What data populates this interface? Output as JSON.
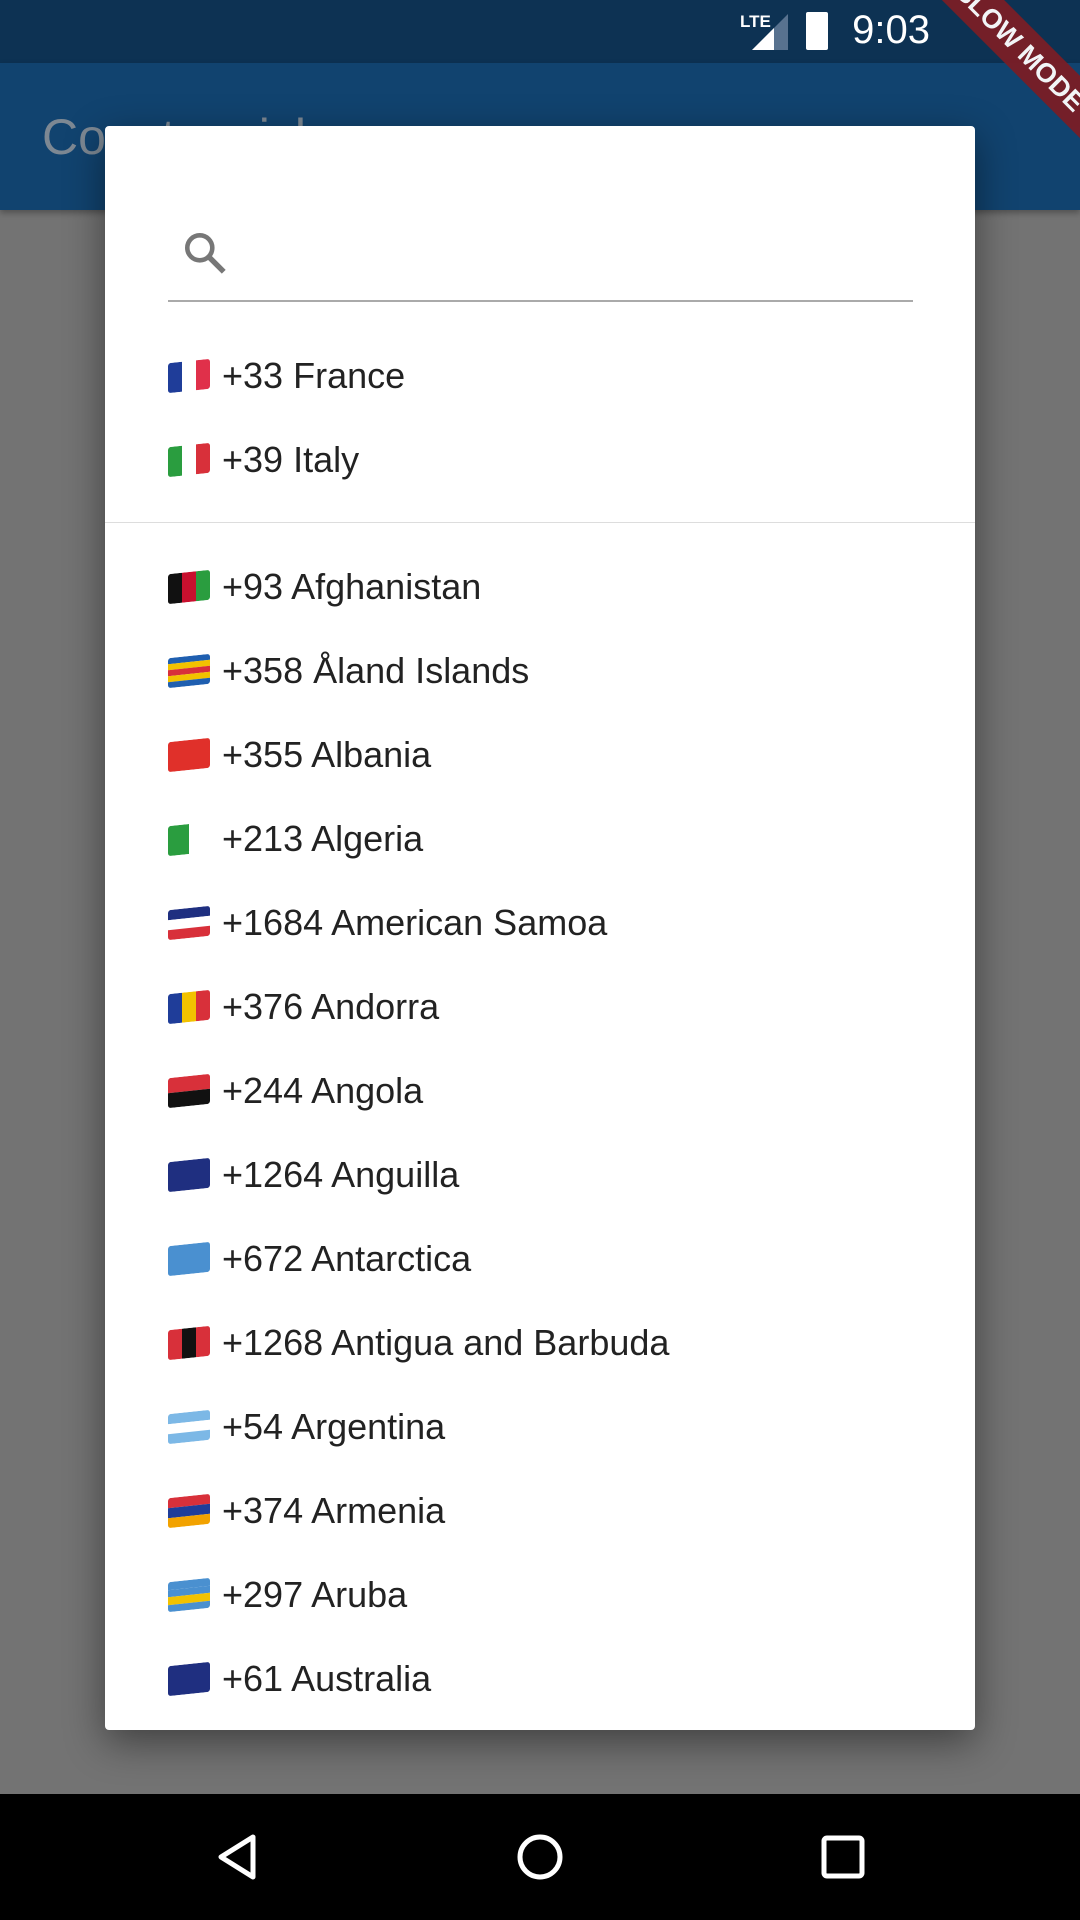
{
  "status_bar": {
    "network": "LTE",
    "time": "9:03",
    "banner": "SLOW MODE"
  },
  "app_bar": {
    "title": "Country picker"
  },
  "dialog": {
    "search": {
      "icon": "search-icon",
      "value": "",
      "placeholder": ""
    },
    "favorites": [
      {
        "code": "+33",
        "name": "France",
        "flag": [
          "#1f3d99",
          "#ffffff",
          "#e0304a"
        ],
        "dir": "v"
      },
      {
        "code": "+39",
        "name": "Italy",
        "flag": [
          "#2a9d3f",
          "#ffffff",
          "#d8303a"
        ],
        "dir": "v"
      }
    ],
    "countries": [
      {
        "code": "+93",
        "name": "Afghanistan",
        "flag": [
          "#111111",
          "#c8102e",
          "#2a9d3f"
        ],
        "dir": "v"
      },
      {
        "code": "+358",
        "name": "Åland Islands",
        "flag": [
          "#1f5fb0",
          "#f2c200",
          "#d8303a",
          "#f2c200",
          "#1f5fb0"
        ],
        "dir": "h"
      },
      {
        "code": "+355",
        "name": "Albania",
        "flag": [
          "#e0302a"
        ],
        "dir": "h"
      },
      {
        "code": "+213",
        "name": "Algeria",
        "flag": [
          "#2a9d3f",
          "#ffffff"
        ],
        "dir": "v"
      },
      {
        "code": "+1684",
        "name": "American Samoa",
        "flag": [
          "#1f2f80",
          "#ffffff",
          "#d8303a"
        ],
        "dir": "h"
      },
      {
        "code": "+376",
        "name": "Andorra",
        "flag": [
          "#1f3d99",
          "#f2c200",
          "#d8303a"
        ],
        "dir": "v"
      },
      {
        "code": "+244",
        "name": "Angola",
        "flag": [
          "#d8303a",
          "#111111"
        ],
        "dir": "h"
      },
      {
        "code": "+1264",
        "name": "Anguilla",
        "flag": [
          "#1f2f80"
        ],
        "dir": "h"
      },
      {
        "code": "+672",
        "name": "Antarctica",
        "flag": [
          "#4a90d0"
        ],
        "dir": "h"
      },
      {
        "code": "+1268",
        "name": "Antigua and Barbuda",
        "flag": [
          "#d8303a",
          "#111111",
          "#d8303a"
        ],
        "dir": "v"
      },
      {
        "code": "+54",
        "name": "Argentina",
        "flag": [
          "#7cb8e6",
          "#ffffff",
          "#7cb8e6"
        ],
        "dir": "h"
      },
      {
        "code": "+374",
        "name": "Armenia",
        "flag": [
          "#d8303a",
          "#1f3d99",
          "#f2a200"
        ],
        "dir": "h"
      },
      {
        "code": "+297",
        "name": "Aruba",
        "flag": [
          "#4a90d0",
          "#4a90d0",
          "#f2c200",
          "#4a90d0"
        ],
        "dir": "h"
      },
      {
        "code": "+61",
        "name": "Australia",
        "flag": [
          "#1f2f80"
        ],
        "dir": "h"
      }
    ]
  },
  "nav_bar": {
    "back": "back-icon",
    "home": "home-icon",
    "recents": "recents-icon"
  }
}
